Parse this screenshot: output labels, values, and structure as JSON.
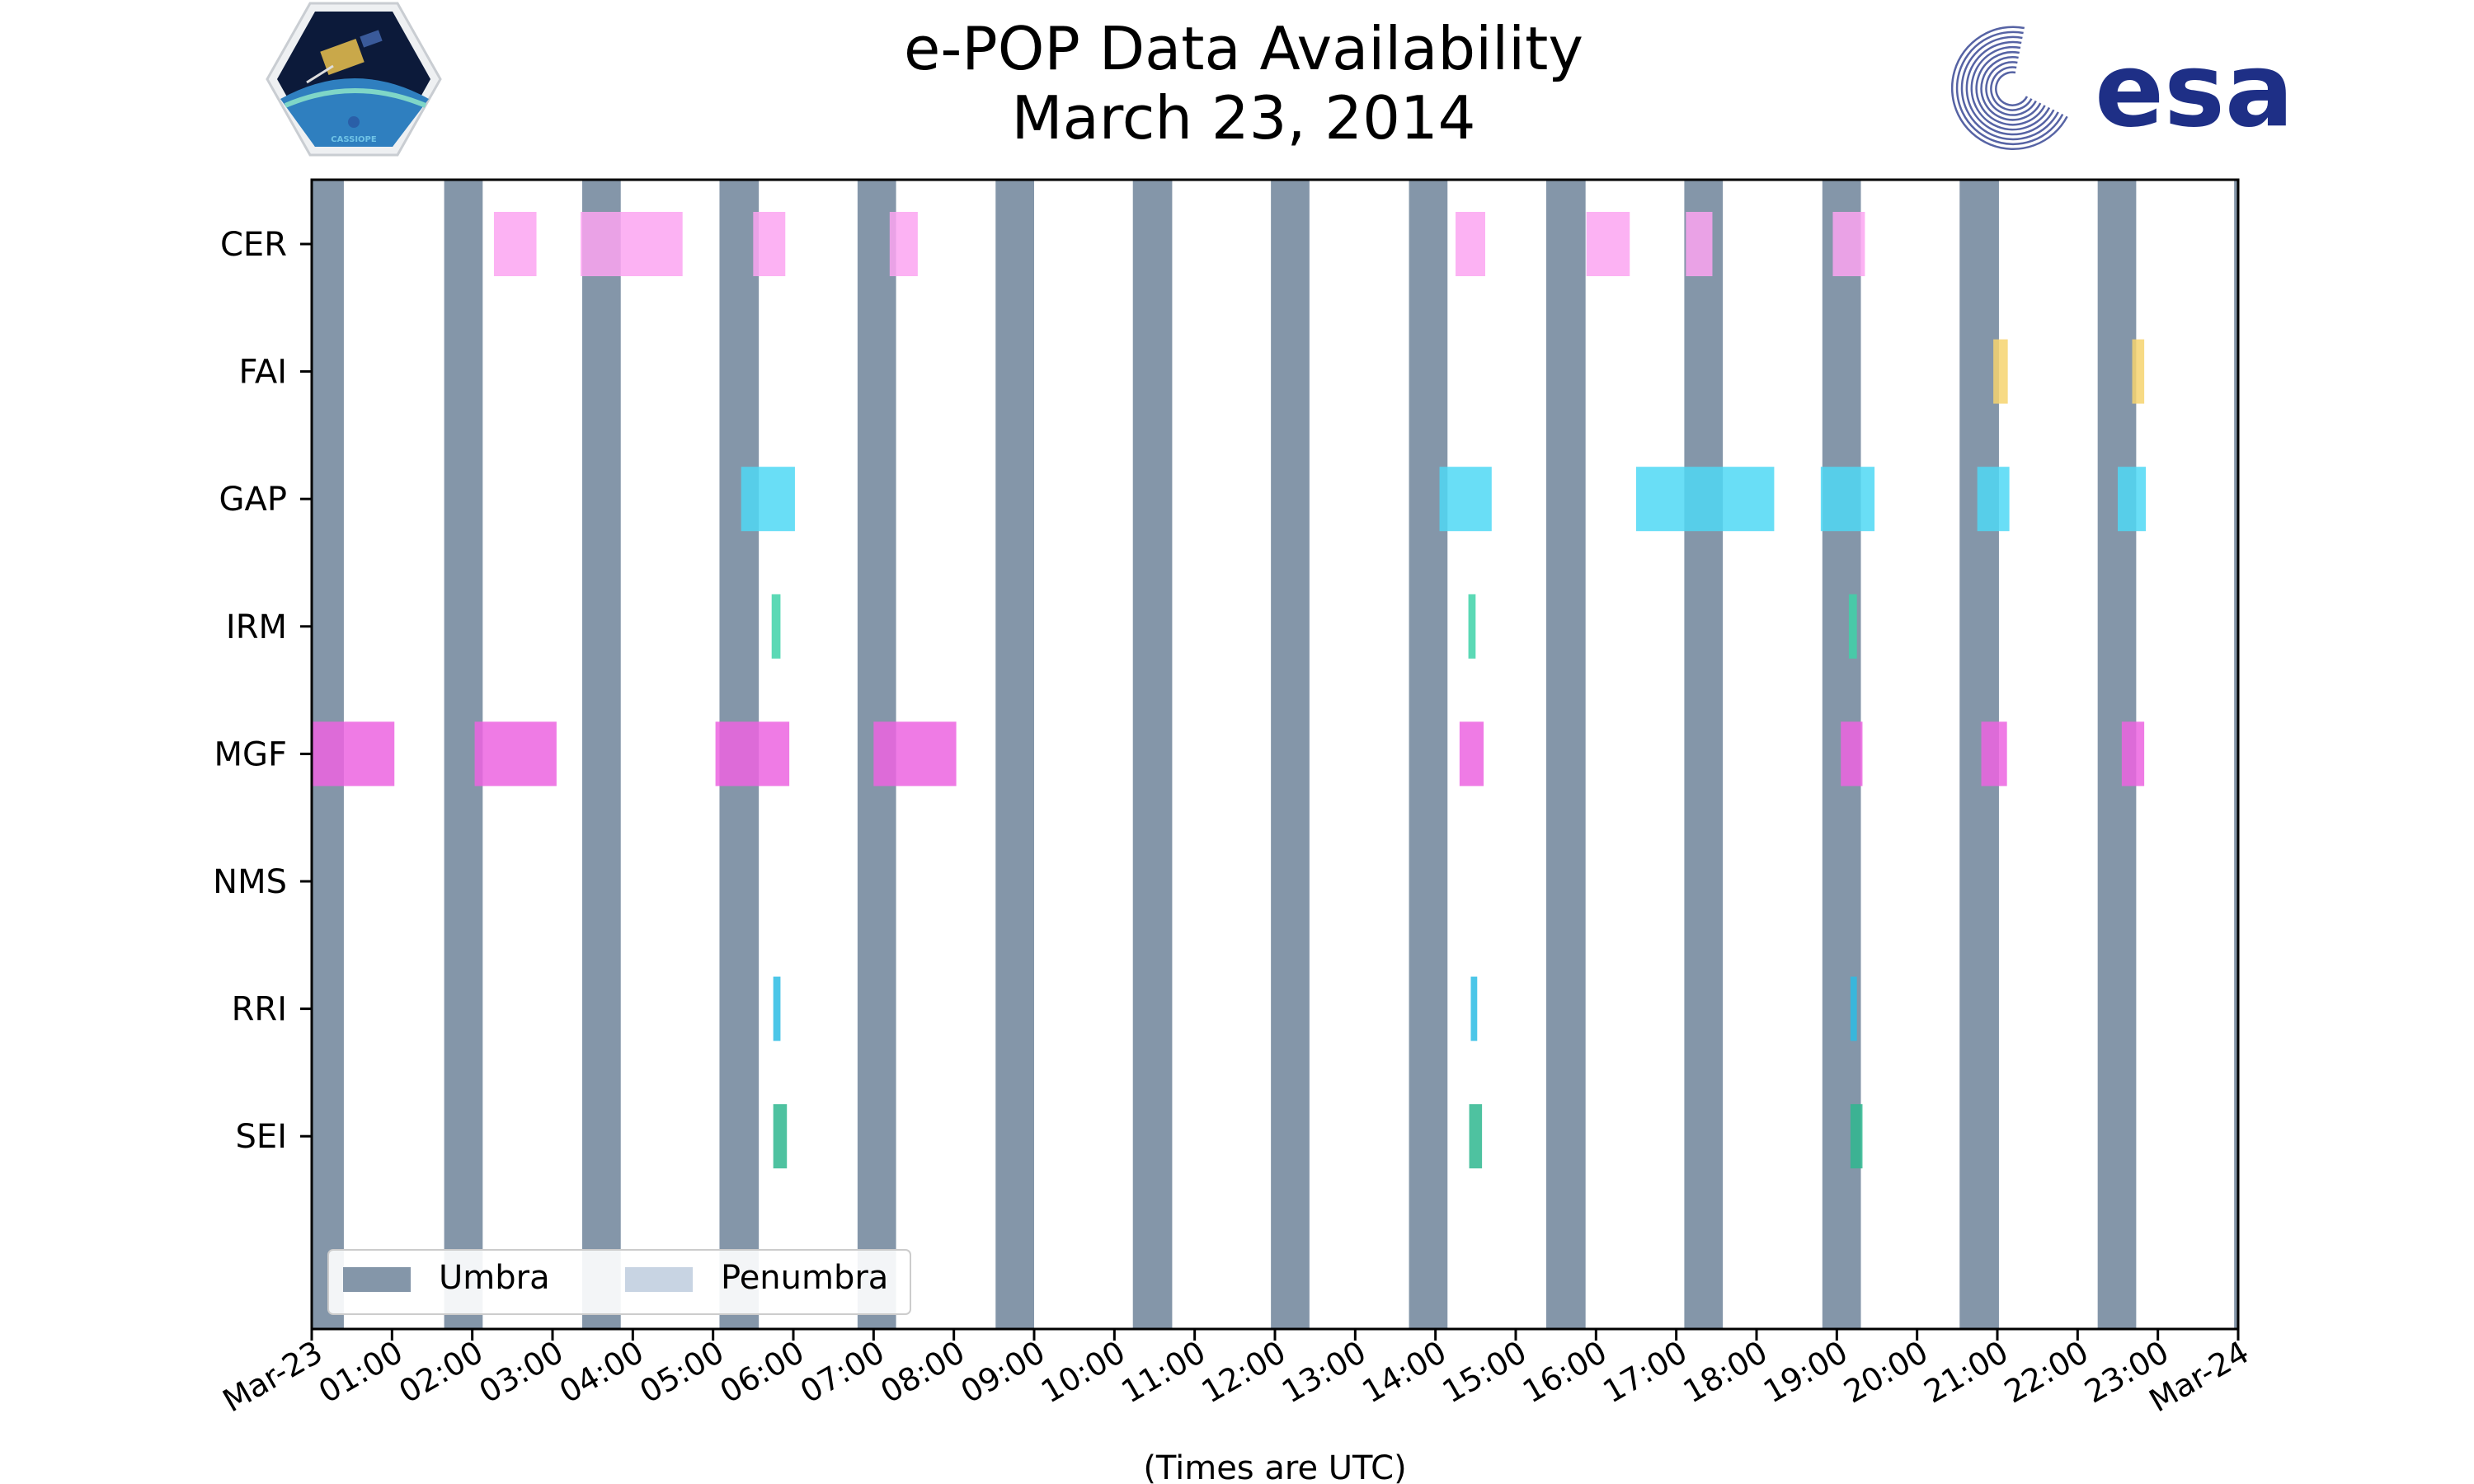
{
  "colors": {
    "umbra": "#8496a9",
    "penumbra": "#c8d4e3",
    "CER": "#fca5f1",
    "FAI": "#f6d36e",
    "GAP": "#4fd8f5",
    "IRM": "#3ed2a8",
    "MGF": "#ec64e0",
    "NMS": "#999999",
    "RRI": "#2bbce4",
    "SEI": "#2fb78f",
    "esa_blue": "#1e2f86"
  },
  "logos": {
    "left_badge_text": "CASSIOPE",
    "right_logo_text": "esa"
  },
  "chart_data": {
    "type": "timeline",
    "title": [
      "e-POP Data Availability",
      "March 23, 2014"
    ],
    "xlabel": "(Times are UTC)",
    "x_unit": "hours since 2014-03-23 00:00 UTC",
    "xlim": [
      0,
      24
    ],
    "x_ticks": [
      0,
      1,
      2,
      3,
      4,
      5,
      6,
      7,
      8,
      9,
      10,
      11,
      12,
      13,
      14,
      15,
      16,
      17,
      18,
      19,
      20,
      21,
      22,
      23,
      24
    ],
    "x_tick_labels": [
      "Mar-23",
      "01:00",
      "02:00",
      "03:00",
      "04:00",
      "05:00",
      "06:00",
      "07:00",
      "08:00",
      "09:00",
      "10:00",
      "11:00",
      "12:00",
      "13:00",
      "14:00",
      "15:00",
      "16:00",
      "17:00",
      "18:00",
      "19:00",
      "20:00",
      "21:00",
      "22:00",
      "23:00",
      "Mar-24"
    ],
    "instruments": [
      "CER",
      "FAI",
      "GAP",
      "IRM",
      "MGF",
      "NMS",
      "RRI",
      "SEI"
    ],
    "umbra": [
      [
        0,
        0.4
      ],
      [
        1.65,
        2.13
      ],
      [
        3.37,
        3.85
      ],
      [
        5.08,
        5.57
      ],
      [
        6.8,
        7.28
      ],
      [
        8.52,
        9.0
      ],
      [
        10.23,
        10.72
      ],
      [
        11.95,
        12.43
      ],
      [
        13.67,
        14.15
      ],
      [
        15.38,
        15.87
      ],
      [
        17.1,
        17.58
      ],
      [
        18.82,
        19.3
      ],
      [
        20.53,
        21.02
      ],
      [
        22.25,
        22.73
      ],
      [
        23.95,
        24.0
      ]
    ],
    "intervals": {
      "CER": [
        [
          2.27,
          2.8
        ],
        [
          3.35,
          4.62
        ],
        [
          5.5,
          5.9
        ],
        [
          7.2,
          7.55
        ],
        [
          14.25,
          14.62
        ],
        [
          15.88,
          16.42
        ],
        [
          17.12,
          17.45
        ],
        [
          18.95,
          19.35
        ]
      ],
      "FAI": [
        [
          20.95,
          21.13
        ],
        [
          22.68,
          22.83
        ]
      ],
      "GAP": [
        [
          5.35,
          6.02
        ],
        [
          14.05,
          14.7
        ],
        [
          16.5,
          18.22
        ],
        [
          18.8,
          19.47
        ],
        [
          20.75,
          21.15
        ],
        [
          22.5,
          22.85
        ]
      ],
      "IRM": [
        [
          5.73,
          5.84
        ],
        [
          14.41,
          14.5
        ],
        [
          19.15,
          19.25
        ]
      ],
      "MGF": [
        [
          0.0,
          1.03
        ],
        [
          2.03,
          3.05
        ],
        [
          5.03,
          5.95
        ],
        [
          7.0,
          8.03
        ],
        [
          14.3,
          14.6
        ],
        [
          19.05,
          19.32
        ],
        [
          20.8,
          21.12
        ],
        [
          22.55,
          22.83
        ]
      ],
      "NMS": [],
      "RRI": [
        [
          5.75,
          5.84
        ],
        [
          14.44,
          14.52
        ],
        [
          19.17,
          19.25
        ]
      ],
      "SEI": [
        [
          5.75,
          5.92
        ],
        [
          14.42,
          14.58
        ],
        [
          19.17,
          19.32
        ]
      ]
    },
    "legend": {
      "position": "lower-left",
      "entries": [
        {
          "label": "Umbra",
          "color_key": "umbra"
        },
        {
          "label": "Penumbra",
          "color_key": "penumbra"
        }
      ]
    }
  }
}
